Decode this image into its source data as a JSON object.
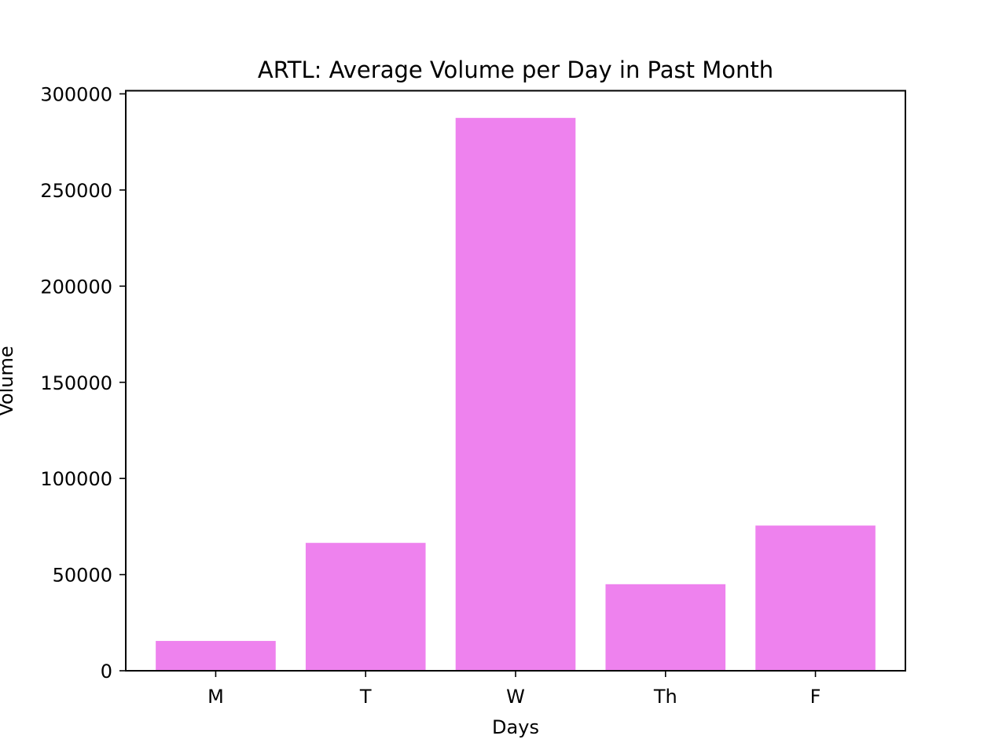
{
  "chart_data": {
    "type": "bar",
    "title": "ARTL: Average Volume per Day in Past Month",
    "xlabel": "Days",
    "ylabel": "Volume",
    "categories": [
      "M",
      "T",
      "W",
      "Th",
      "F"
    ],
    "values": [
      15500,
      66500,
      287500,
      45000,
      75500
    ],
    "ylim": [
      0,
      300000
    ],
    "yticks": [
      0,
      50000,
      100000,
      150000,
      200000,
      250000,
      300000
    ],
    "grid": false,
    "legend": "none",
    "bar_color": "#ee82ee"
  }
}
